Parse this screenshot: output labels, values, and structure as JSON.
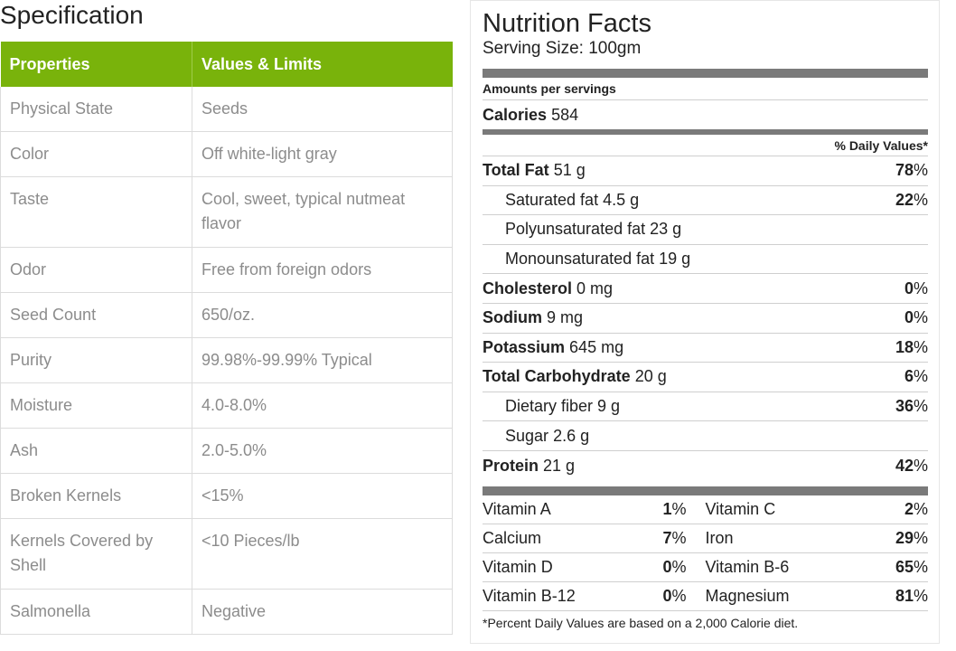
{
  "specification": {
    "title": "Specification",
    "headers": [
      "Properties",
      "Values & Limits"
    ],
    "rows": [
      {
        "property": "Physical State",
        "value": "Seeds"
      },
      {
        "property": "Color",
        "value": "Off white-light gray"
      },
      {
        "property": "Taste",
        "value": "Cool, sweet, typical nutmeat flavor"
      },
      {
        "property": "Odor",
        "value": "Free from foreign odors"
      },
      {
        "property": "Seed Count",
        "value": "650/oz."
      },
      {
        "property": "Purity",
        "value": "99.98%-99.99% Typical"
      },
      {
        "property": "Moisture",
        "value": "4.0-8.0%"
      },
      {
        "property": "Ash",
        "value": "2.0-5.0%"
      },
      {
        "property": "Broken Kernels",
        "value": "<15%"
      },
      {
        "property": "Kernels Covered by Shell",
        "value": "<10 Pieces/lb"
      },
      {
        "property": "Salmonella",
        "value": "Negative"
      }
    ],
    "header_color": "#79b30b"
  },
  "nutrition": {
    "title": "Nutrition Facts",
    "serving": "Serving Size: 100gm",
    "amounts_label": "Amounts per servings",
    "calories_label": "Calories",
    "calories_value": "584",
    "dv_header": "% Daily Values*",
    "nutrients": [
      {
        "name": "Total Fat",
        "amount": "51 g",
        "dv": "78",
        "bold": true,
        "indent": false
      },
      {
        "name": "Saturated fat",
        "amount": "4.5 g",
        "dv": "22",
        "bold": false,
        "indent": true
      },
      {
        "name": "Polyunsaturated fat",
        "amount": "23 g",
        "dv": "",
        "bold": false,
        "indent": true
      },
      {
        "name": "Monounsaturated fat",
        "amount": "19 g",
        "dv": "",
        "bold": false,
        "indent": true
      },
      {
        "name": "Cholesterol",
        "amount": "0 mg",
        "dv": "0",
        "bold": true,
        "indent": false
      },
      {
        "name": "Sodium",
        "amount": "9 mg",
        "dv": "0",
        "bold": true,
        "indent": false
      },
      {
        "name": "Potassium",
        "amount": "645 mg",
        "dv": "18",
        "bold": true,
        "indent": false
      },
      {
        "name": "Total Carbohydrate",
        "amount": "20 g",
        "dv": "6",
        "bold": true,
        "indent": false
      },
      {
        "name": "Dietary fiber",
        "amount": "9 g",
        "dv": "36",
        "bold": false,
        "indent": true
      },
      {
        "name": "Sugar",
        "amount": "2.6 g",
        "dv": "",
        "bold": false,
        "indent": true
      },
      {
        "name": "Protein",
        "amount": "21 g",
        "dv": "42",
        "bold": true,
        "indent": false
      }
    ],
    "vitamins": [
      {
        "left_name": "Vitamin A",
        "left_dv": "1",
        "right_name": "Vitamin C",
        "right_dv": "2"
      },
      {
        "left_name": "Calcium",
        "left_dv": "7",
        "right_name": "Iron",
        "right_dv": "29"
      },
      {
        "left_name": "Vitamin D",
        "left_dv": "0",
        "right_name": "Vitamin B-6",
        "right_dv": "65"
      },
      {
        "left_name": "Vitamin B-12",
        "left_dv": "0",
        "right_name": "Magnesium",
        "right_dv": "81"
      }
    ],
    "percent_sign": "%",
    "footnote": "*Percent Daily Values are based on a 2,000 Calorie diet."
  }
}
